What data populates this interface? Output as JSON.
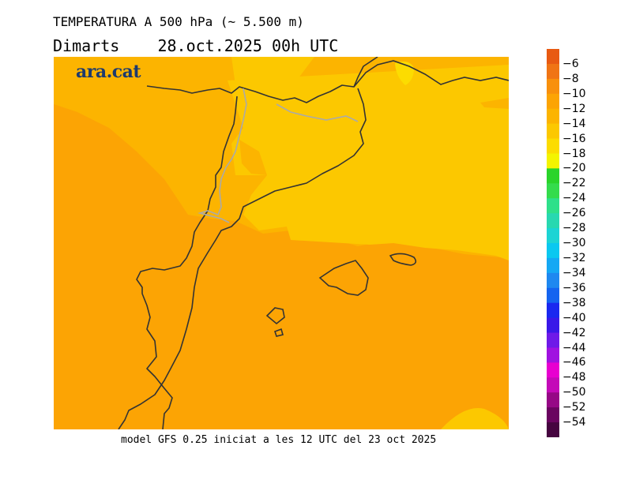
{
  "header": {
    "title": "TEMPERATURA A 500 hPa (~ 5.500 m)",
    "subtitle_day": "Dimarts",
    "subtitle_date": "28.oct.2025 00h UTC"
  },
  "brand": {
    "logo_text": "ara.cat"
  },
  "footer": {
    "model_text": "model GFS 0.25 iniciat a les 12 UTC del 23 oct 2025"
  },
  "legend": {
    "labels": [
      "-6",
      "-8",
      "-10",
      "-12",
      "-14",
      "-16",
      "-18",
      "-20",
      "-22",
      "-24",
      "-26",
      "-28",
      "-30",
      "-32",
      "-34",
      "-36",
      "-38",
      "-40",
      "-42",
      "-44",
      "-46",
      "-48",
      "-50",
      "-52",
      "-54"
    ],
    "colors": [
      "#e85a12",
      "#f07414",
      "#f8900c",
      "#fca404",
      "#fcb400",
      "#fcc800",
      "#fcdc00",
      "#f4f400",
      "#2ad42a",
      "#34dc4c",
      "#2ee08a",
      "#28d8b0",
      "#1cd4d4",
      "#0ac8f0",
      "#14a8f4",
      "#1e88f0",
      "#1464f0",
      "#1a28f0",
      "#3a18e8",
      "#6e1ae8",
      "#a012e0",
      "#e800d0",
      "#c40ab8",
      "#960886",
      "#6a0460",
      "#460440"
    ]
  },
  "map": {
    "colors": {
      "ocean_orange": "#fca404",
      "warm_orange": "#fcb400",
      "yellow": "#fcc800",
      "bright_yellow": "#fcdc00",
      "coast": "#333333",
      "border": "#aaaaaa"
    }
  }
}
